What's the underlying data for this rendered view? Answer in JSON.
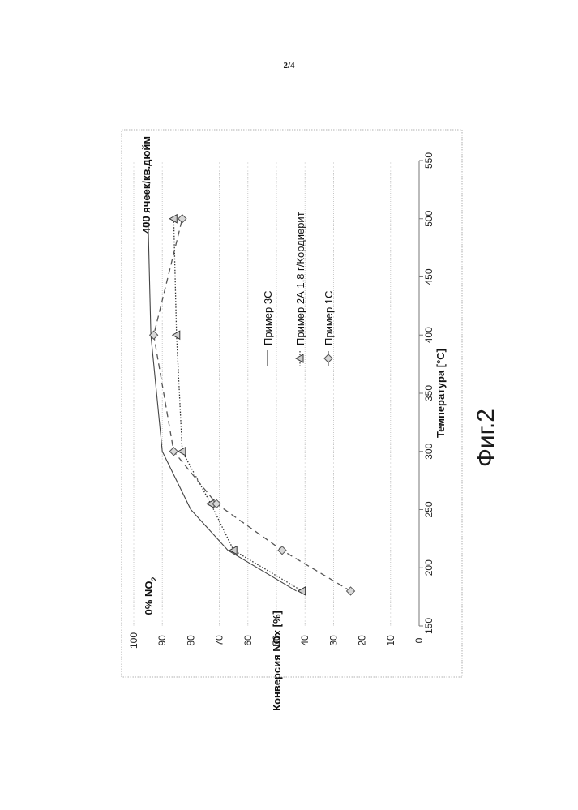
{
  "page": {
    "page_number": "2/4",
    "figure_caption": "Фиг.2"
  },
  "chart_data": {
    "type": "line",
    "xlabel": "Температура [°C]",
    "ylabel": "Конверсия NOx [%]",
    "xlim": [
      150,
      550
    ],
    "ylim": [
      0,
      100
    ],
    "x_ticks": [
      150,
      200,
      250,
      300,
      350,
      400,
      450,
      500,
      550
    ],
    "y_ticks": [
      0,
      10,
      20,
      30,
      40,
      50,
      60,
      70,
      80,
      90,
      100
    ],
    "grid": "horizontal",
    "annotations": {
      "top_left": "0% NO",
      "top_left_subscript": "2",
      "top_right": "400 ячеек/кв.дюйм"
    },
    "series": [
      {
        "name": "Пример 3С",
        "x": [
          180,
          215,
          250,
          300,
          400,
          500
        ],
        "y": [
          43,
          67,
          80,
          90,
          94,
          95
        ],
        "color": "#444444",
        "style": "solid",
        "marker": "none"
      },
      {
        "name": "Пример 2А 1,8 г/Кордиерит",
        "x": [
          180,
          215,
          255,
          300,
          400,
          500
        ],
        "y": [
          41,
          65,
          73,
          83,
          85,
          86
        ],
        "color": "#333333",
        "style": "dotted",
        "marker": "triangle"
      },
      {
        "name": "Пример 1С",
        "x": [
          180,
          215,
          255,
          300,
          400,
          500
        ],
        "y": [
          24,
          48,
          71,
          86,
          93,
          83
        ],
        "color": "#555555",
        "style": "dashed",
        "marker": "diamond"
      }
    ]
  }
}
